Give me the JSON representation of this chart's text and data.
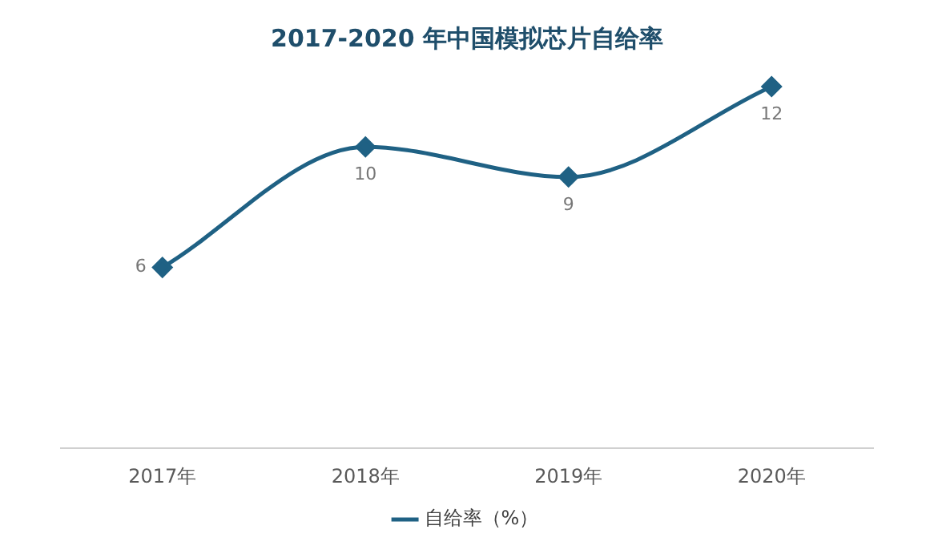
{
  "chart_data": {
    "type": "line",
    "title": "2017-2020 年中国模拟芯片自给率",
    "categories": [
      "2017年",
      "2018年",
      "2019年",
      "2020年"
    ],
    "series": [
      {
        "name": "自给率（%）",
        "color": "#1f6184",
        "values": [
          6,
          10,
          9,
          12
        ]
      }
    ],
    "data_labels": true,
    "legend": "bottom",
    "marker": "diamond",
    "line_style": "solid"
  }
}
